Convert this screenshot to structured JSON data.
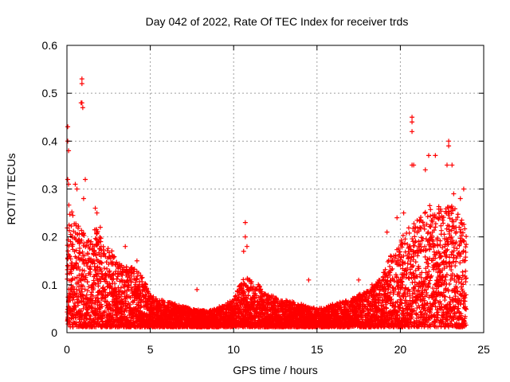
{
  "chart_data": {
    "type": "scatter",
    "title": "Day 042 of 2022, Rate Of TEC Index for receiver trds",
    "xlabel": "GPS time / hours",
    "ylabel": "ROTI / TECUs",
    "xlim": [
      0,
      25
    ],
    "ylim": [
      0,
      0.6
    ],
    "xticks": [
      "0",
      "5",
      "10",
      "15",
      "20",
      "25"
    ],
    "yticks": [
      "0",
      "0.1",
      "0.2",
      "0.3",
      "0.4",
      "0.5",
      "0.6"
    ],
    "grid": true,
    "marker": "plus",
    "color": "#ff0000",
    "series": [
      {
        "values": [
          [
            0.05,
            0.43
          ],
          [
            0.1,
            0.38
          ],
          [
            0.05,
            0.4
          ],
          [
            0.05,
            0.32
          ],
          [
            0.1,
            0.31
          ],
          [
            0.9,
            0.53
          ],
          [
            0.9,
            0.52
          ],
          [
            0.9,
            0.48
          ],
          [
            0.95,
            0.47
          ],
          [
            0.85,
            0.48
          ],
          [
            0.5,
            0.31
          ],
          [
            0.6,
            0.3
          ],
          [
            1.1,
            0.32
          ],
          [
            1.0,
            0.28
          ],
          [
            1.7,
            0.26
          ],
          [
            1.8,
            0.25
          ],
          [
            2.0,
            0.22
          ],
          [
            3.5,
            0.18
          ],
          [
            4.2,
            0.15
          ],
          [
            7.8,
            0.09
          ],
          [
            10.7,
            0.23
          ],
          [
            10.7,
            0.2
          ],
          [
            10.6,
            0.17
          ],
          [
            10.8,
            0.18
          ],
          [
            14.5,
            0.11
          ],
          [
            17.5,
            0.11
          ],
          [
            18.3,
            0.1
          ],
          [
            19.2,
            0.21
          ],
          [
            19.8,
            0.24
          ],
          [
            20.2,
            0.25
          ],
          [
            20.7,
            0.45
          ],
          [
            20.7,
            0.44
          ],
          [
            20.7,
            0.42
          ],
          [
            20.7,
            0.35
          ],
          [
            20.8,
            0.35
          ],
          [
            21.5,
            0.34
          ],
          [
            21.7,
            0.37
          ],
          [
            22.1,
            0.37
          ],
          [
            22.9,
            0.4
          ],
          [
            22.9,
            0.39
          ],
          [
            23.1,
            0.35
          ],
          [
            23.2,
            0.29
          ],
          [
            23.6,
            0.28
          ],
          [
            23.8,
            0.3
          ],
          [
            22.8,
            0.35
          ]
        ]
      }
    ],
    "envelope": [
      [
        0.1,
        0.28
      ],
      [
        0.4,
        0.24
      ],
      [
        0.8,
        0.22
      ],
      [
        1.2,
        0.2
      ],
      [
        1.8,
        0.22
      ],
      [
        2.5,
        0.18
      ],
      [
        3.2,
        0.15
      ],
      [
        3.8,
        0.14
      ],
      [
        4.5,
        0.12
      ],
      [
        5.0,
        0.08
      ],
      [
        5.5,
        0.07
      ],
      [
        6.5,
        0.06
      ],
      [
        7.5,
        0.05
      ],
      [
        8.5,
        0.045
      ],
      [
        9.5,
        0.06
      ],
      [
        10.0,
        0.07
      ],
      [
        10.5,
        0.11
      ],
      [
        11.0,
        0.12
      ],
      [
        11.5,
        0.1
      ],
      [
        12.0,
        0.08
      ],
      [
        13.0,
        0.07
      ],
      [
        14.0,
        0.06
      ],
      [
        15.0,
        0.05
      ],
      [
        16.0,
        0.06
      ],
      [
        17.0,
        0.07
      ],
      [
        18.0,
        0.09
      ],
      [
        18.5,
        0.1
      ],
      [
        19.0,
        0.13
      ],
      [
        19.5,
        0.17
      ],
      [
        20.0,
        0.2
      ],
      [
        20.5,
        0.22
      ],
      [
        21.0,
        0.24
      ],
      [
        21.5,
        0.26
      ],
      [
        22.0,
        0.27
      ],
      [
        22.5,
        0.26
      ],
      [
        23.0,
        0.27
      ],
      [
        23.5,
        0.25
      ],
      [
        23.9,
        0.22
      ]
    ]
  }
}
